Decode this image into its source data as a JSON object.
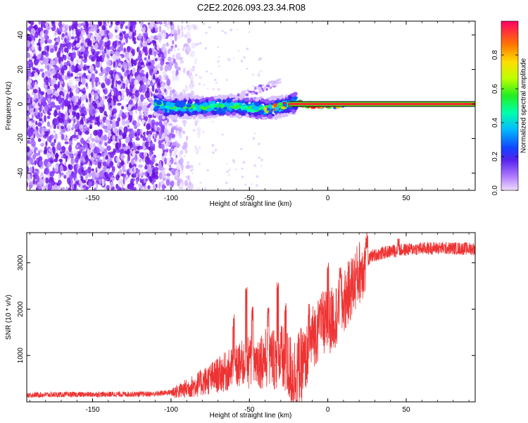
{
  "figure": {
    "title": "C2E2.2026.093.23.34.R08"
  },
  "chart_data": [
    {
      "type": "heatmap",
      "title": "C2E2.2026.093.23.34.R08",
      "xlabel": "Height of straight line (km)",
      "ylabel": "Frequency (Hz)",
      "xlim": [
        -192,
        94
      ],
      "ylim": [
        -50,
        48
      ],
      "x_ticks": [
        -150,
        -100,
        -50,
        0,
        50
      ],
      "y_ticks": [
        -40,
        -20,
        0,
        20,
        40
      ],
      "grid": false,
      "colorbar": {
        "label": "Normalized spectral amplitude",
        "range": [
          0,
          1
        ],
        "ticks": [
          0.0,
          0.2,
          0.4,
          0.6,
          0.8
        ]
      },
      "features": {
        "noise_region_x": [
          -192,
          -90
        ],
        "signal_centerline": [
          {
            "x": -105,
            "y": -2
          },
          {
            "x": -80,
            "y": -2
          },
          {
            "x": -60,
            "y": -1
          },
          {
            "x": -40,
            "y": -3
          },
          {
            "x": -28,
            "y": -1
          },
          {
            "x": -20,
            "y": 1
          },
          {
            "x": -10,
            "y": -1
          },
          {
            "x": 0,
            "y": -1
          },
          {
            "x": 10,
            "y": 0
          },
          {
            "x": 94,
            "y": 0
          }
        ],
        "stable_line_x": [
          -25,
          94
        ]
      }
    },
    {
      "type": "line",
      "xlabel": "Height of straight line (km)",
      "ylabel": "SNR (10 * v/v)",
      "xlim": [
        -192,
        94
      ],
      "ylim": [
        0,
        3650
      ],
      "x_ticks": [
        -150,
        -100,
        -50,
        0,
        50
      ],
      "y_ticks": [
        1000,
        2000,
        3000
      ],
      "grid": false,
      "series": [
        {
          "color": "#ee3333",
          "points": [
            {
              "x": -192,
              "y": 150
            },
            {
              "x": -150,
              "y": 160
            },
            {
              "x": -110,
              "y": 170
            },
            {
              "x": -95,
              "y": 230
            },
            {
              "x": -85,
              "y": 350
            },
            {
              "x": -75,
              "y": 500
            },
            {
              "x": -65,
              "y": 650
            },
            {
              "x": -55,
              "y": 800
            },
            {
              "x": -45,
              "y": 900
            },
            {
              "x": -38,
              "y": 950
            },
            {
              "x": -30,
              "y": 950
            },
            {
              "x": -22,
              "y": 600
            },
            {
              "x": -15,
              "y": 800
            },
            {
              "x": -10,
              "y": 1400
            },
            {
              "x": -3,
              "y": 1700
            },
            {
              "x": 2,
              "y": 1750
            },
            {
              "x": 8,
              "y": 2000
            },
            {
              "x": 14,
              "y": 2400
            },
            {
              "x": 20,
              "y": 2800
            },
            {
              "x": 28,
              "y": 3150
            },
            {
              "x": 40,
              "y": 3250
            },
            {
              "x": 55,
              "y": 3300
            },
            {
              "x": 70,
              "y": 3320
            },
            {
              "x": 94,
              "y": 3300
            }
          ],
          "peak_points": [
            {
              "x": -60,
              "y": 1900
            },
            {
              "x": -52,
              "y": 2500
            },
            {
              "x": -48,
              "y": 2050
            },
            {
              "x": -38,
              "y": 2050
            },
            {
              "x": -32,
              "y": 2650
            },
            {
              "x": -27,
              "y": 2150
            },
            {
              "x": -12,
              "y": 2150
            },
            {
              "x": -5,
              "y": 2250
            },
            {
              "x": 0,
              "y": 3050
            },
            {
              "x": 8,
              "y": 2950
            },
            {
              "x": 25,
              "y": 3600
            },
            {
              "x": 45,
              "y": 3550
            }
          ]
        }
      ]
    }
  ]
}
